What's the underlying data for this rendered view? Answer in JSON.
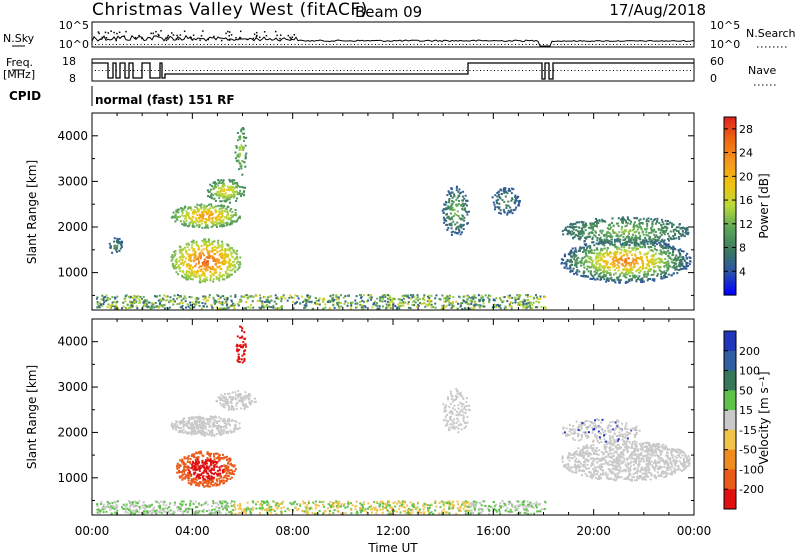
{
  "header": {
    "station": "Christmas Valley West (fitACF)",
    "beam": "Beam 09",
    "date": "17/Aug/2018"
  },
  "top_strip": {
    "nsky_label": "N.Sky",
    "nsky_ticks": [
      "10^5",
      "10^0"
    ],
    "nsearch_label": "N.Search",
    "nsearch_ticks": [
      "10^5",
      "10^0"
    ],
    "freq_label_line1": "Freq.",
    "freq_label_line2": "[MHz]",
    "freq_ticks": [
      "18",
      "8"
    ],
    "nave_label": "Nave",
    "nave_ticks": [
      "60",
      "0"
    ],
    "cpid_label": "CPID",
    "cpid_value": "normal (fast) 151 RF"
  },
  "chart_data": [
    {
      "type": "heatmap",
      "ylabel": "Slant Range [km]",
      "yticks": [
        "1000",
        "2000",
        "3000",
        "4000"
      ],
      "ylim": [
        180,
        4500
      ],
      "colorbar_label": "Power [dB]",
      "colorbar_ticks": [
        "4",
        "8",
        "12",
        "16",
        "20",
        "24",
        "28"
      ],
      "colorbar_range": [
        0,
        30
      ],
      "colormap": [
        "#0000ff",
        "#2a52a8",
        "#3d7a5f",
        "#5aa55a",
        "#b6d93a",
        "#f0c40f",
        "#f49a1c",
        "#ef6a12",
        "#e2281a"
      ]
    },
    {
      "type": "heatmap",
      "ylabel": "Slant Range [km]",
      "yticks": [
        "1000",
        "2000",
        "3000",
        "4000"
      ],
      "ylim": [
        180,
        4500
      ],
      "colorbar_label": "Velocity [m s⁻¹]",
      "colorbar_ticks": [
        "200",
        "100",
        "50",
        "15",
        "-15",
        "-50",
        "-100",
        "-200"
      ],
      "colorbar_colors": [
        "#2036b8",
        "#2f5fa0",
        "#37785a",
        "#5fc24a",
        "#c9c9c9",
        "#f1c34a",
        "#ef8c1f",
        "#ea5a1a",
        "#e01010"
      ]
    }
  ],
  "xaxis": {
    "label": "Time UT",
    "ticks": [
      "00:00",
      "04:00",
      "08:00",
      "12:00",
      "16:00",
      "20:00",
      "00:00"
    ]
  }
}
